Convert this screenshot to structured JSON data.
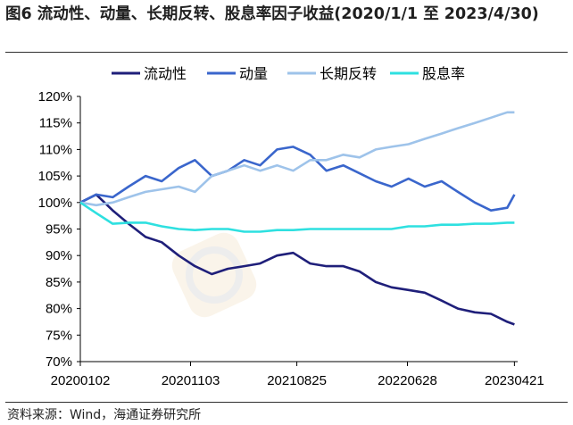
{
  "title": "图6 流动性、动量、长期反转、股息率因子收益(2020/1/1  至 2023/4/30)",
  "source": "资料来源：Wind，海通证券研究所",
  "chart_data": {
    "type": "line",
    "title": "图6 流动性、动量、长期反转、股息率因子收益(2020/1/1  至 2023/4/30)",
    "xlabel": "",
    "ylabel": "",
    "ylim": [
      0.7,
      1.2
    ],
    "yticks": [
      0.7,
      0.75,
      0.8,
      0.85,
      0.9,
      0.95,
      1.0,
      1.05,
      1.1,
      1.15,
      1.2
    ],
    "ytick_labels": [
      "70%",
      "75%",
      "80%",
      "85%",
      "90%",
      "95%",
      "100%",
      "105%",
      "110%",
      "115%",
      "120%"
    ],
    "xlim": [
      "2020-01-02",
      "2023-04-30"
    ],
    "xtick_dates": [
      "2020-01-02",
      "2020-11-03",
      "2021-08-25",
      "2022-06-28",
      "2023-04-21"
    ],
    "xtick_labels": [
      "20200102",
      "20201103",
      "20210825",
      "20220628",
      "20230421"
    ],
    "grid": false,
    "legend_position": "top",
    "x": [
      "2020-01-02",
      "2020-02-15",
      "2020-04-01",
      "2020-05-15",
      "2020-07-01",
      "2020-08-15",
      "2020-10-01",
      "2020-11-15",
      "2021-01-01",
      "2021-02-15",
      "2021-04-01",
      "2021-05-15",
      "2021-07-01",
      "2021-08-15",
      "2021-10-01",
      "2021-11-15",
      "2022-01-01",
      "2022-02-15",
      "2022-04-01",
      "2022-05-15",
      "2022-07-01",
      "2022-08-15",
      "2022-10-01",
      "2022-11-15",
      "2023-01-01",
      "2023-02-15",
      "2023-04-01",
      "2023-04-21"
    ],
    "series": [
      {
        "name": "流动性",
        "color": "#1f1f7a",
        "values": [
          1.0,
          1.015,
          0.985,
          0.96,
          0.935,
          0.925,
          0.9,
          0.88,
          0.865,
          0.875,
          0.88,
          0.885,
          0.9,
          0.905,
          0.885,
          0.88,
          0.88,
          0.87,
          0.85,
          0.84,
          0.835,
          0.83,
          0.815,
          0.8,
          0.793,
          0.79,
          0.775,
          0.77
        ]
      },
      {
        "name": "动量",
        "color": "#3a66cc",
        "values": [
          1.0,
          1.015,
          1.01,
          1.03,
          1.05,
          1.04,
          1.065,
          1.08,
          1.05,
          1.06,
          1.08,
          1.07,
          1.1,
          1.105,
          1.09,
          1.06,
          1.07,
          1.055,
          1.04,
          1.03,
          1.045,
          1.03,
          1.04,
          1.02,
          1.0,
          0.985,
          0.99,
          1.015
        ]
      },
      {
        "name": "长期反转",
        "color": "#9ec3ea",
        "values": [
          1.0,
          0.995,
          1.0,
          1.01,
          1.02,
          1.025,
          1.03,
          1.02,
          1.05,
          1.06,
          1.07,
          1.06,
          1.07,
          1.06,
          1.08,
          1.08,
          1.09,
          1.085,
          1.1,
          1.105,
          1.11,
          1.12,
          1.13,
          1.14,
          1.15,
          1.16,
          1.17,
          1.17
        ]
      },
      {
        "name": "股息率",
        "color": "#2ee0e0",
        "values": [
          1.0,
          0.98,
          0.96,
          0.962,
          0.962,
          0.955,
          0.95,
          0.948,
          0.95,
          0.95,
          0.945,
          0.945,
          0.948,
          0.948,
          0.95,
          0.95,
          0.95,
          0.95,
          0.95,
          0.95,
          0.955,
          0.955,
          0.958,
          0.958,
          0.96,
          0.96,
          0.962,
          0.962
        ]
      }
    ]
  }
}
